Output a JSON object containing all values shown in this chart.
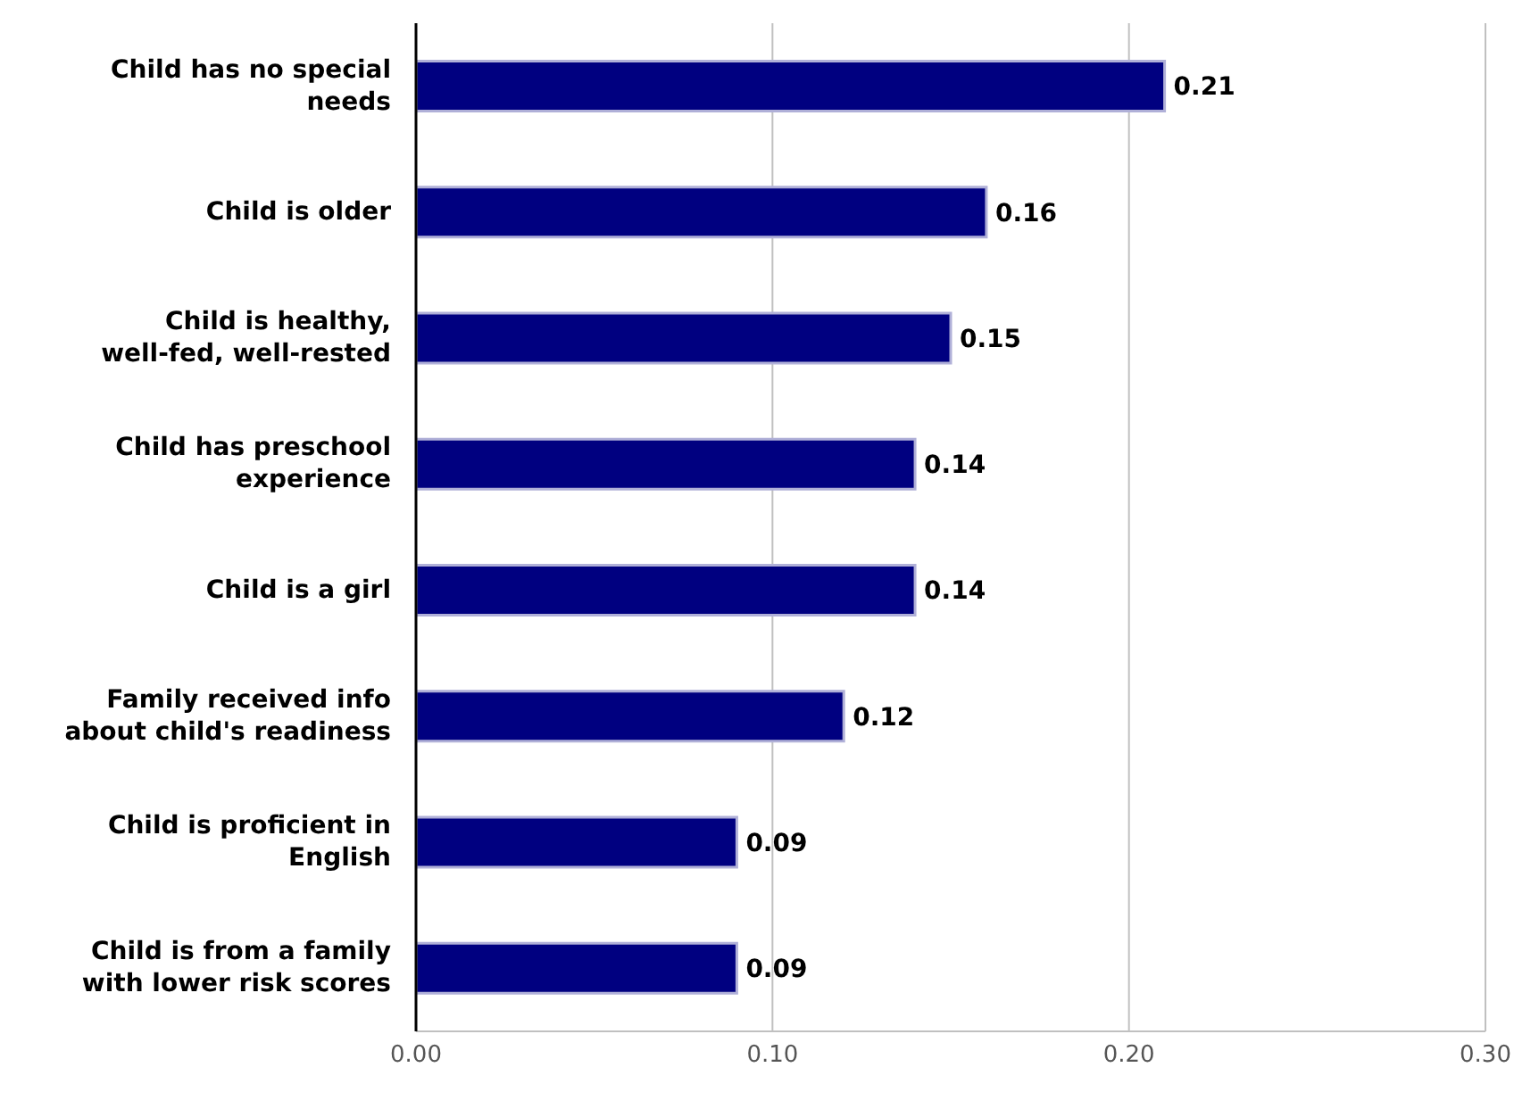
{
  "chart_data": {
    "type": "bar",
    "orientation": "horizontal",
    "categories": [
      "Child has no special needs",
      "Child is older",
      "Child is healthy, well-fed, well-rested",
      "Child has preschool experience",
      "Child is a girl",
      "Family received info about child's readiness",
      "Child is proficient in English",
      "Child is from a family with lower risk scores"
    ],
    "values": [
      0.21,
      0.16,
      0.15,
      0.14,
      0.14,
      0.12,
      0.09,
      0.09
    ],
    "color": "#000080",
    "xlim": [
      0,
      0.3
    ],
    "xticks": [
      {
        "value": 0,
        "label": "0.00"
      },
      {
        "value": 0.1,
        "label": "0.10"
      },
      {
        "value": 0.2,
        "label": "0.20"
      },
      {
        "value": 0.3,
        "label": "0.30"
      }
    ],
    "grid": "x",
    "data_labels": true
  }
}
